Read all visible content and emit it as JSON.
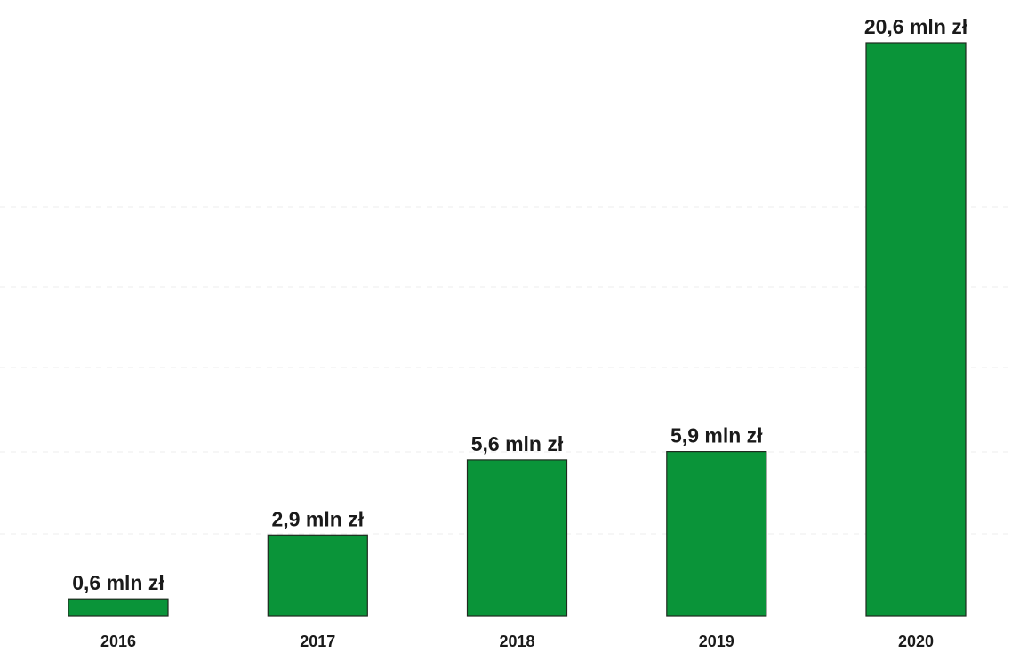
{
  "chart_data": {
    "type": "bar",
    "categories": [
      "2016",
      "2017",
      "2018",
      "2019",
      "2020"
    ],
    "values": [
      0.6,
      2.9,
      5.6,
      5.9,
      20.6
    ],
    "data_labels": [
      "0,6 mln zł",
      "2,9 mln zł",
      "5,6 mln zł",
      "5,9 mln zł",
      "20,6 mln zł"
    ],
    "title": "",
    "xlabel": "",
    "ylabel": "",
    "y_axis_visible": false,
    "grid": true,
    "legend": "none",
    "colors": {
      "bar": "#0a9439",
      "bar_border": "#1f2a1f",
      "label_text": "#1a1a1a",
      "grid": "#ececec"
    }
  }
}
